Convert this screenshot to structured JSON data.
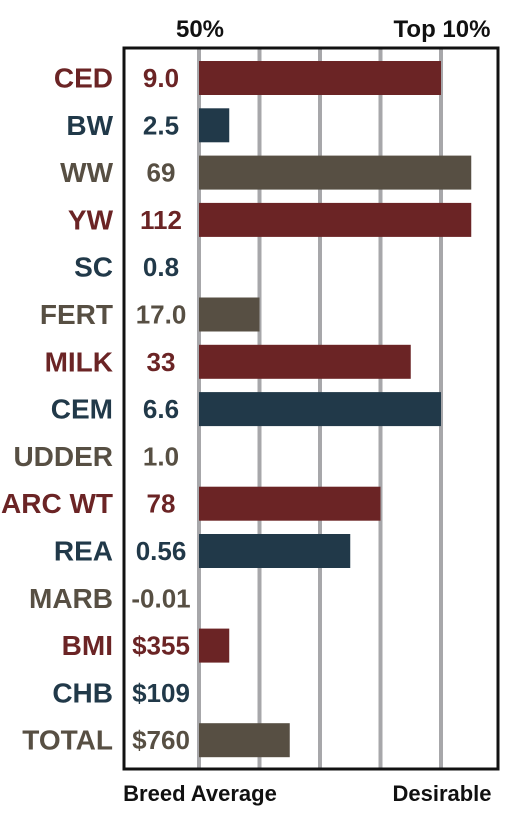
{
  "chart_data": {
    "type": "bar",
    "orientation": "horizontal",
    "header_labels": {
      "left": "50%",
      "right": "Top 10%"
    },
    "footer_labels": {
      "left": "Breed Average",
      "right": "Desirable"
    },
    "x_scale_note": "bar length in gridline units from Breed Average (0) to Top 10% (4); grid shows 5 lines",
    "xlim": [
      0,
      4
    ],
    "grid": true,
    "colors": {
      "red": "#6b2425",
      "blue": "#213949",
      "gray": "#574f43"
    },
    "categories": [
      "CED",
      "BW",
      "WW",
      "YW",
      "SC",
      "FERT",
      "MILK",
      "CEM",
      "UDDER",
      "CARC WT",
      "REA",
      "MARB",
      "BMI",
      "CHB",
      "TOTAL"
    ],
    "values_text": [
      "9.0",
      "2.5",
      "69",
      "112",
      "0.8",
      "17.0",
      "33",
      "6.6",
      "1.0",
      "78",
      "0.56",
      "-0.01",
      "$355",
      "$109",
      "$760"
    ],
    "bar_levels": [
      4.0,
      0.5,
      4.5,
      4.5,
      0,
      1.0,
      3.5,
      4.0,
      0,
      3.0,
      2.5,
      0,
      0.5,
      0,
      1.5
    ],
    "row_colors": [
      "red",
      "blue",
      "gray",
      "red",
      "blue",
      "gray",
      "red",
      "blue",
      "gray",
      "red",
      "blue",
      "gray",
      "red",
      "blue",
      "gray"
    ]
  }
}
